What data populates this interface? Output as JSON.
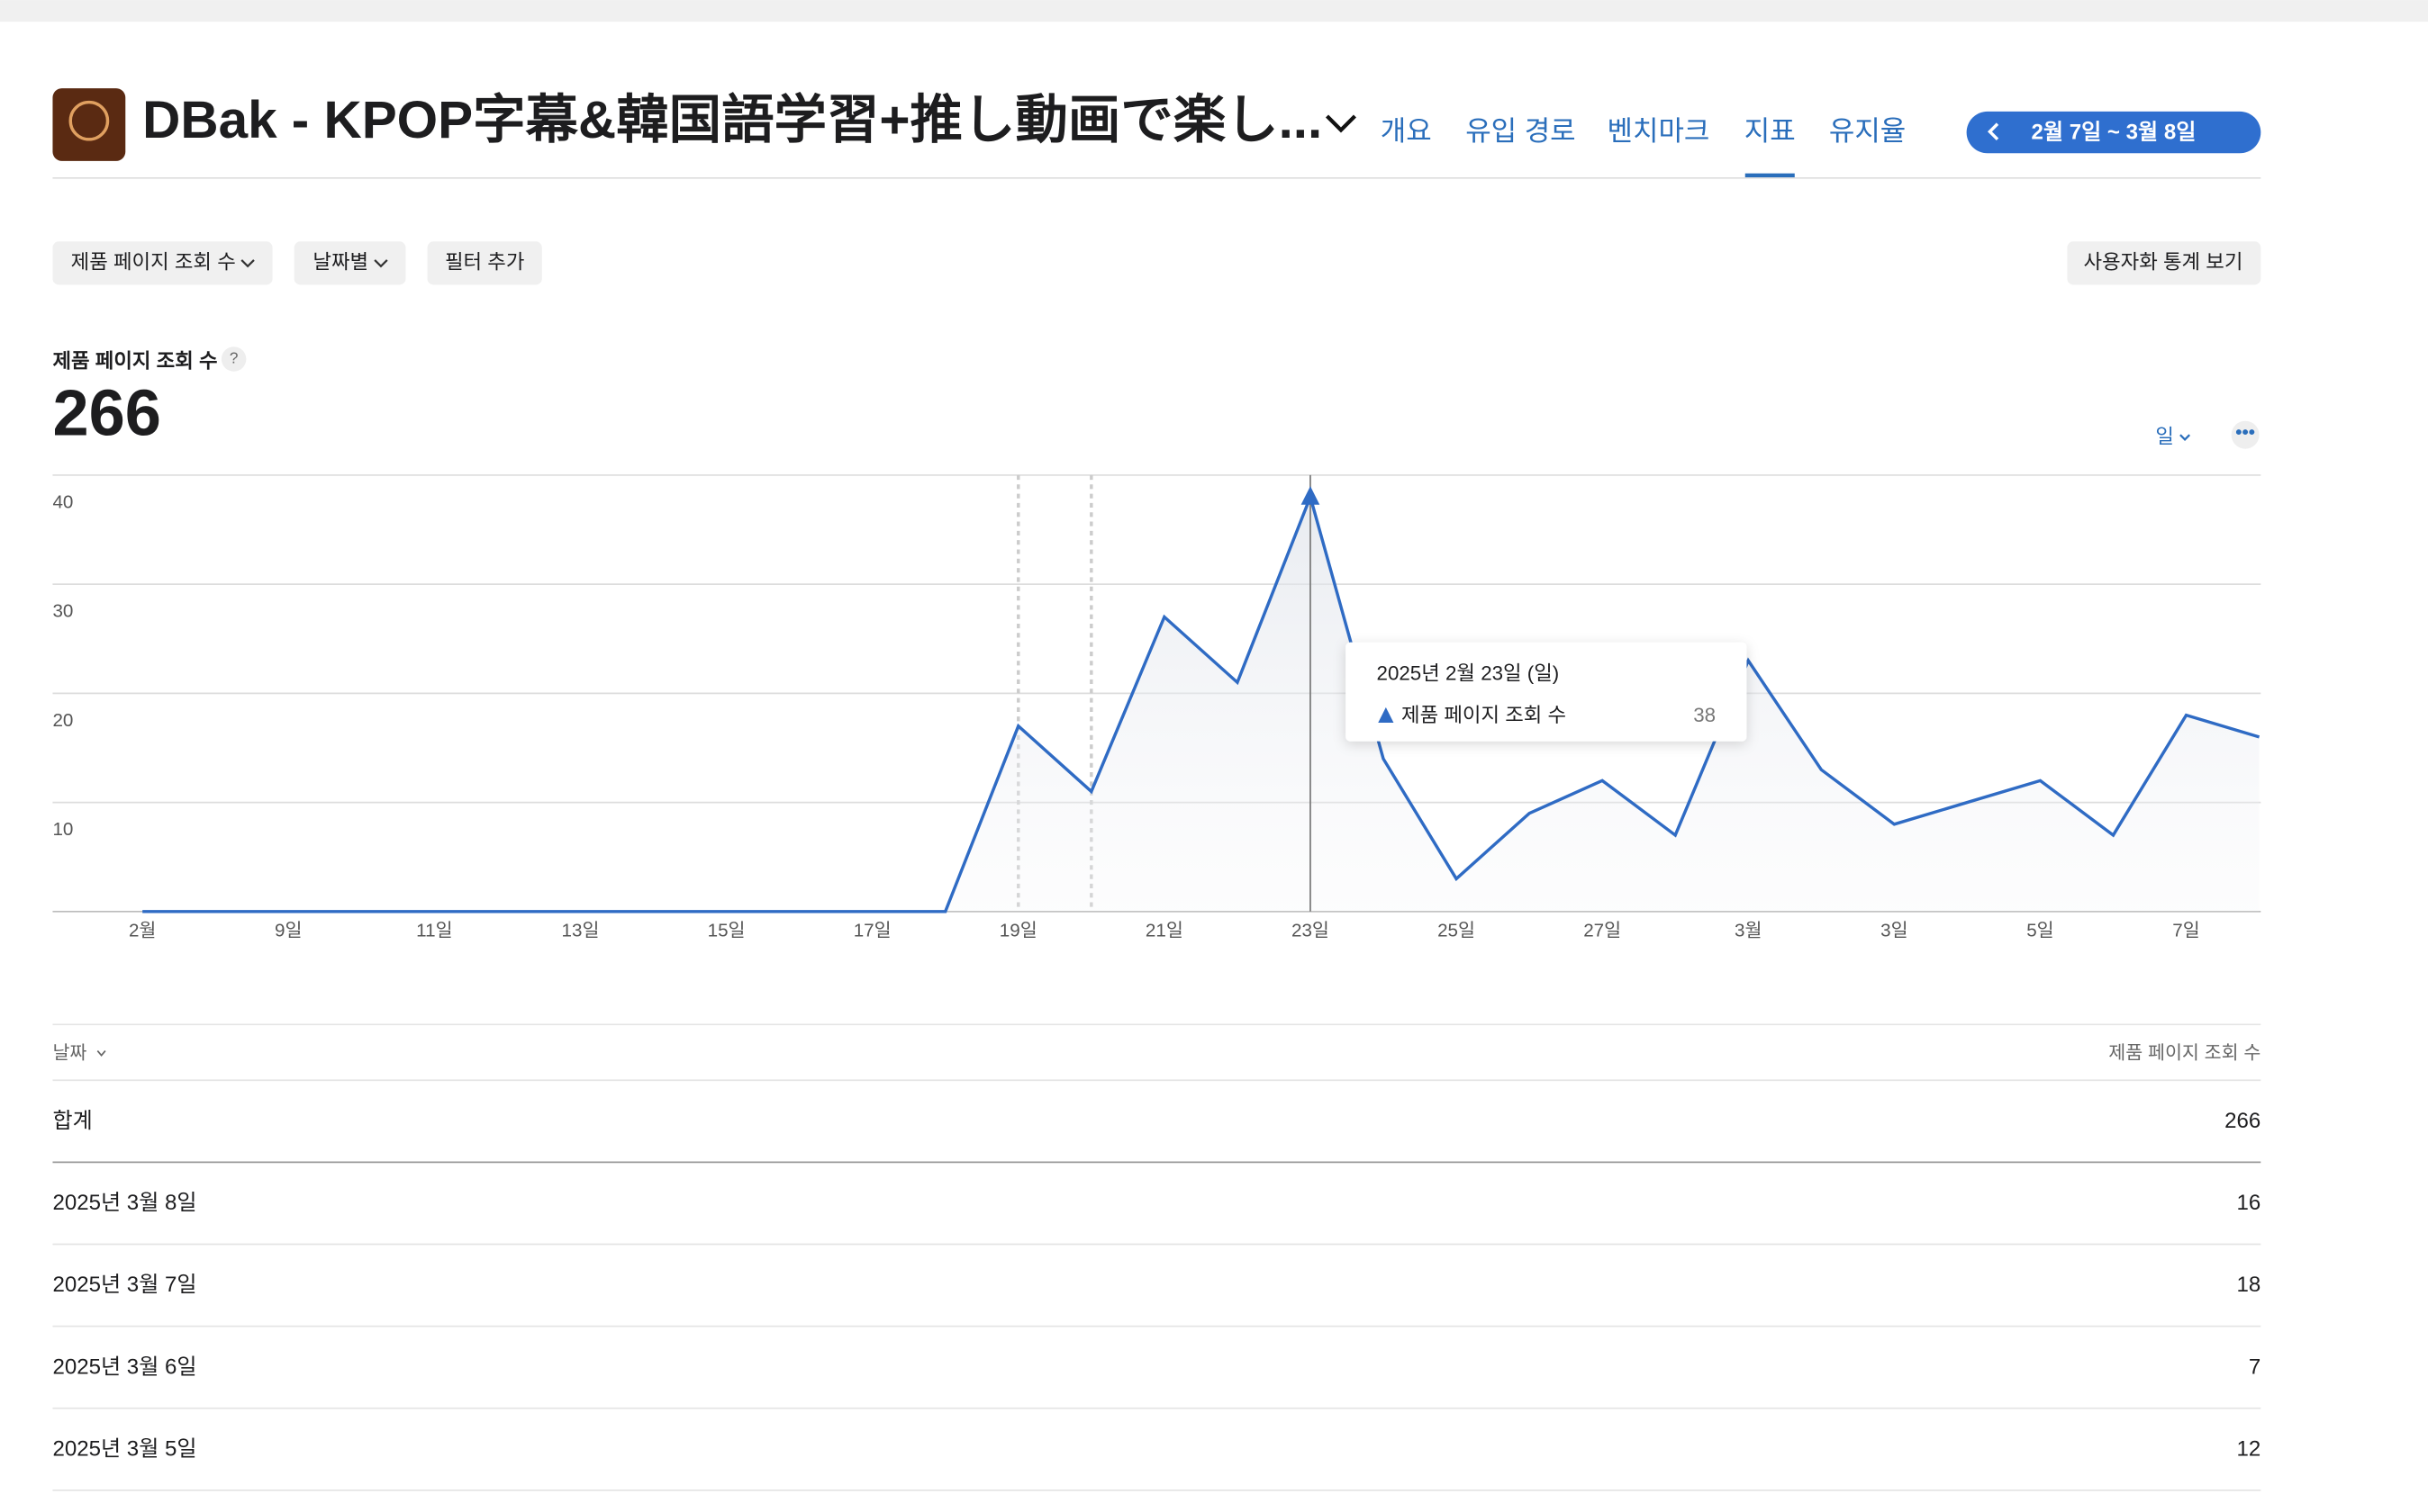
{
  "header": {
    "app_title": "DBak - KPOP字幕&韓国語学習+推し動画で楽し...",
    "tabs": [
      "개요",
      "유입 경로",
      "벤치마크",
      "지표",
      "유지율"
    ],
    "date_range": "2월 7일 ~ 3월 8일"
  },
  "filters": [
    "제품 페이지 조회 수",
    "날짜별",
    "필터 추가"
  ],
  "custom_view": "사용자화 통계 보기",
  "metric": {
    "label": "제품 페이지 조회 수",
    "total": 266,
    "period": "일"
  },
  "chart_data": {
    "type": "line",
    "categories": [
      "2월",
      null,
      "9일",
      null,
      "11일",
      null,
      "13일",
      null,
      "15일",
      null,
      "17일",
      null,
      "19일",
      null,
      "21일",
      null,
      "23일",
      null,
      "25일",
      null,
      "27일",
      null,
      "3월",
      null,
      "3일",
      null,
      "5일",
      null,
      "7일",
      null
    ],
    "series": [
      {
        "name": "제품 페이지 조회 수",
        "color": "#2f6bc4",
        "values": [
          0,
          0,
          0,
          0,
          0,
          0,
          0,
          0,
          0,
          0,
          0,
          0,
          17,
          11,
          27,
          21,
          38,
          14,
          3,
          9,
          12,
          7,
          23,
          13,
          8,
          10,
          12,
          7,
          18,
          16
        ]
      }
    ],
    "ylim": [
      0,
      40
    ],
    "yticks": [
      10,
      20,
      30,
      40
    ],
    "grid": true
  },
  "tooltip": {
    "date": "2025년 2월 23일 (일)"
  },
  "table": {
    "header": [
      "날짜",
      "제품 페이지 조회 수"
    ],
    "rows": [
      [
        "합계",
        266
      ],
      [
        "2025년 3월 8일",
        16
      ],
      [
        "2025년 3월 7일",
        18
      ],
      [
        "2025년 3월 6일",
        7
      ],
      [
        "2025년 3월 5일",
        12
      ]
    ]
  }
}
